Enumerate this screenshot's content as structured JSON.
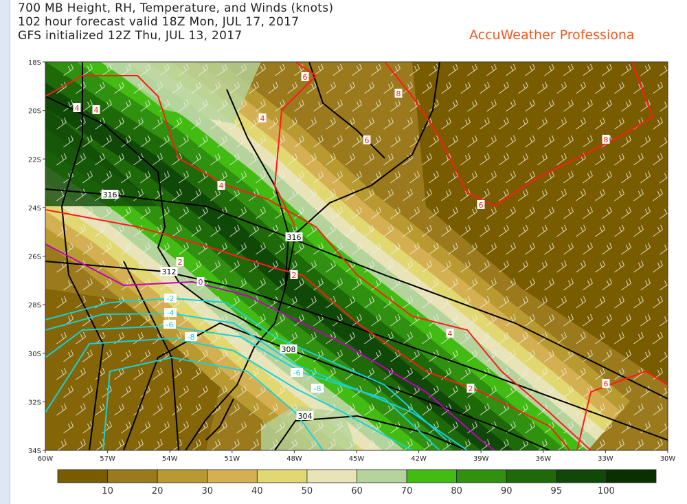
{
  "header": {
    "title_line1": "700 MB Height, RH, Temperature, and Winds (knots)",
    "title_line2": "102 hour forecast valid 18Z Mon, JUL 17, 2017",
    "title_line3": "GFS initialized 12Z Thu, JUL 13, 2017",
    "brand": "AccuWeather Professiona"
  },
  "map": {
    "lat_labels": [
      "18S",
      "20S",
      "22S",
      "24S",
      "26S",
      "28S",
      "30S",
      "32S",
      "34S"
    ],
    "lon_labels": [
      "60W",
      "57W",
      "54W",
      "51W",
      "48W",
      "45W",
      "42W",
      "39W",
      "36W",
      "33W",
      "30W"
    ],
    "height_contour_labels": [
      "316",
      "316",
      "312",
      "308",
      "304"
    ],
    "temp_contour_labels_warm": [
      "4",
      "4",
      "4",
      "4",
      "4",
      "2",
      "2",
      "2",
      "6",
      "6",
      "6",
      "6",
      "8",
      "8"
    ],
    "temp_contour_label_zero": "0",
    "temp_contour_labels_cold": [
      "-2",
      "-4",
      "-6",
      "-8",
      "-6",
      "-8"
    ],
    "colors": {
      "height": "#000000",
      "temp_warm": "#ff1a1a",
      "temp_zero": "#c000c0",
      "temp_cold": "#19d0d8",
      "wind_barbs": "#f0f0e8"
    }
  },
  "colorbar": {
    "colors": [
      "#7a5c00",
      "#9a7a1c",
      "#b89a30",
      "#d4b052",
      "#e2d872",
      "#e8e4b8",
      "#b4d49c",
      "#42bc12",
      "#309010",
      "#1e6a08",
      "#104808",
      "#0a3000"
    ],
    "labels": [
      "10",
      "20",
      "30",
      "40",
      "50",
      "60",
      "70",
      "80",
      "90",
      "95",
      "100"
    ]
  }
}
